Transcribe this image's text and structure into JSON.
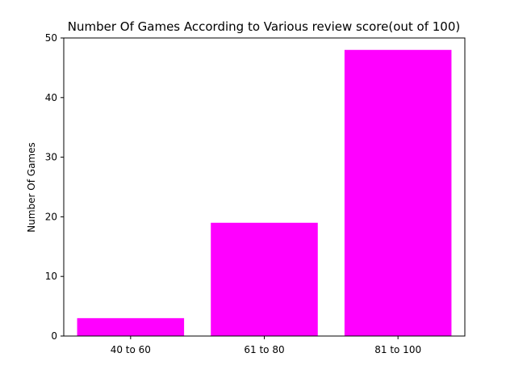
{
  "chart_data": {
    "type": "bar",
    "title": "Number Of Games According to Various review score(out of 100)",
    "xlabel": "",
    "ylabel": "Number Of Games",
    "categories": [
      "40 to 60",
      "61 to 80",
      "81 to 100"
    ],
    "series": [
      {
        "values": [
          3,
          19,
          48
        ]
      }
    ],
    "ylim": [
      0,
      50
    ],
    "yticks": [
      0,
      10,
      20,
      30,
      40,
      50
    ],
    "bar_color": "#ff00ff",
    "grid": false,
    "legend": "none"
  }
}
